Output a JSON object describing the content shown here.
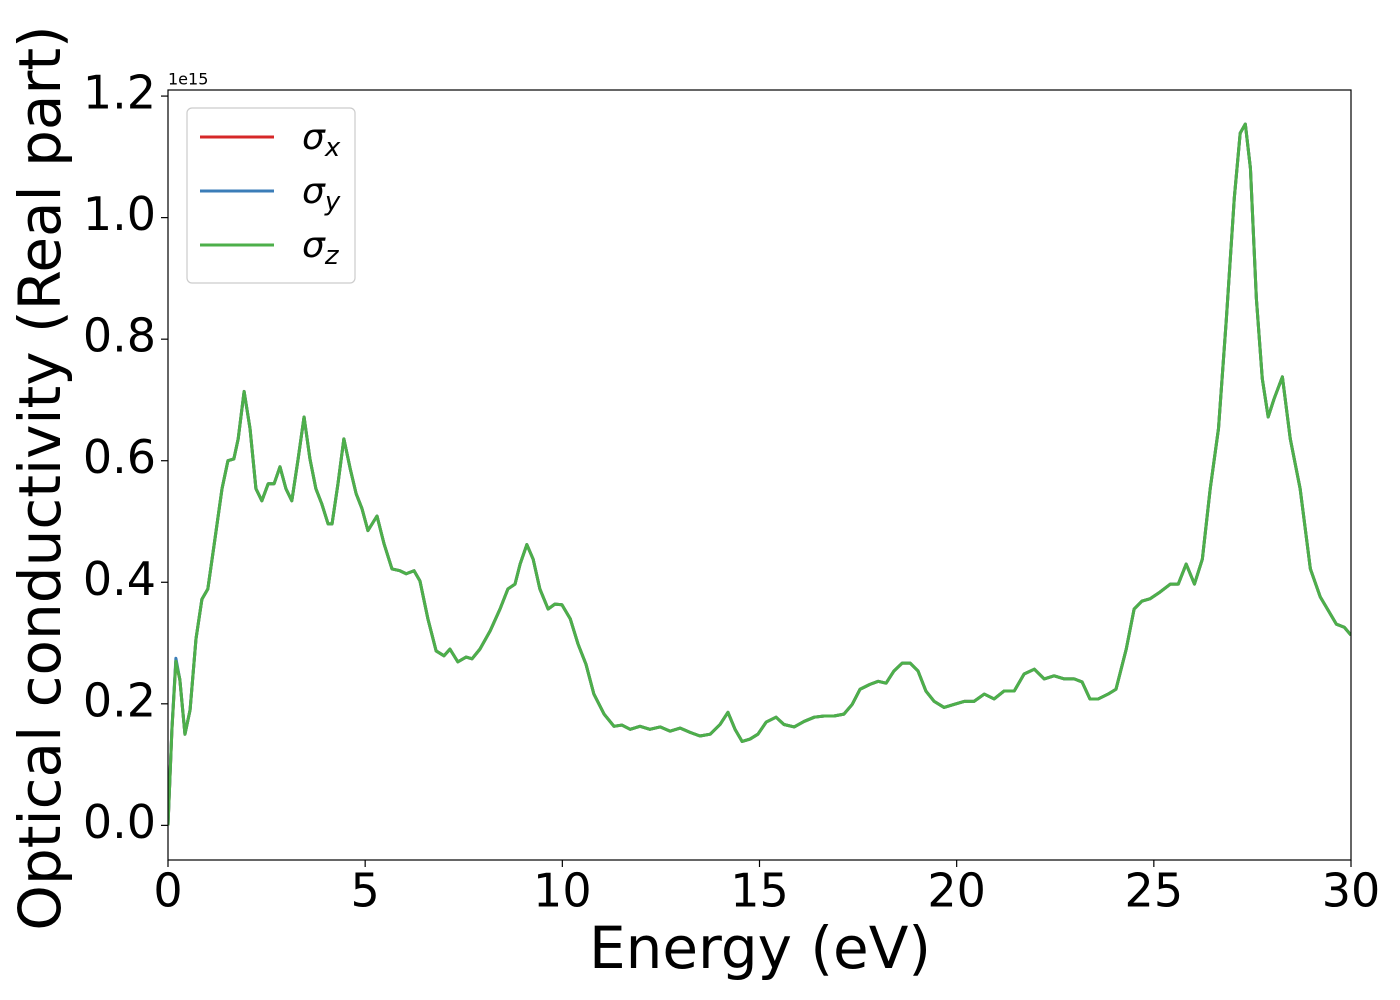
{
  "chart_data": {
    "type": "line",
    "xlabel": "Energy (eV)",
    "ylabel": "Optical conductivity (Real part)",
    "y_offset_label": "1e15",
    "x": [
      0,
      0.1,
      0.2,
      0.3,
      0.43,
      0.56,
      0.71,
      0.86,
      1.01,
      1.19,
      1.37,
      1.52,
      1.67,
      1.78,
      1.93,
      2.08,
      2.23,
      2.38,
      2.54,
      2.69,
      2.84,
      2.99,
      3.14,
      3.3,
      3.45,
      3.6,
      3.75,
      3.9,
      4.06,
      4.16,
      4.31,
      4.46,
      4.62,
      4.77,
      4.92,
      5.07,
      5.3,
      5.48,
      5.68,
      5.88,
      6.04,
      6.24,
      6.39,
      6.59,
      6.8,
      7.0,
      7.15,
      7.35,
      7.56,
      7.71,
      7.91,
      8.17,
      8.42,
      8.62,
      8.8,
      8.93,
      9.1,
      9.26,
      9.43,
      9.64,
      9.81,
      9.99,
      10.2,
      10.4,
      10.6,
      10.8,
      11.06,
      11.31,
      11.51,
      11.72,
      11.97,
      12.22,
      12.48,
      12.73,
      12.99,
      13.24,
      13.49,
      13.75,
      14.0,
      14.2,
      14.38,
      14.56,
      14.76,
      14.96,
      15.17,
      15.42,
      15.62,
      15.88,
      16.13,
      16.39,
      16.64,
      16.89,
      17.14,
      17.35,
      17.55,
      17.8,
      18.01,
      18.21,
      18.41,
      18.62,
      18.82,
      19.02,
      19.22,
      19.43,
      19.68,
      19.93,
      20.19,
      20.44,
      20.7,
      20.95,
      21.2,
      21.46,
      21.71,
      21.97,
      22.22,
      22.47,
      22.73,
      22.98,
      23.18,
      23.38,
      23.59,
      23.84,
      24.04,
      24.3,
      24.5,
      24.7,
      24.91,
      25.16,
      25.42,
      25.62,
      25.82,
      26.03,
      26.23,
      26.43,
      26.64,
      26.84,
      27.04,
      27.19,
      27.32,
      27.45,
      27.6,
      27.75,
      27.9,
      28.05,
      28.26,
      28.46,
      28.71,
      28.97,
      29.22,
      29.43,
      29.63,
      29.83,
      30
    ],
    "series": [
      {
        "name": "σx",
        "color": "#d62728",
        "values": [
          0,
          0.158,
          0.27,
          0.24,
          0.15,
          0.19,
          0.307,
          0.372,
          0.389,
          0.471,
          0.554,
          0.6,
          0.603,
          0.636,
          0.714,
          0.653,
          0.554,
          0.534,
          0.562,
          0.562,
          0.59,
          0.554,
          0.534,
          0.603,
          0.672,
          0.603,
          0.554,
          0.529,
          0.496,
          0.496,
          0.562,
          0.636,
          0.587,
          0.546,
          0.521,
          0.485,
          0.509,
          0.463,
          0.422,
          0.419,
          0.414,
          0.419,
          0.402,
          0.34,
          0.287,
          0.279,
          0.29,
          0.269,
          0.277,
          0.274,
          0.29,
          0.32,
          0.356,
          0.389,
          0.397,
          0.43,
          0.462,
          0.438,
          0.389,
          0.356,
          0.364,
          0.363,
          0.34,
          0.298,
          0.265,
          0.216,
          0.183,
          0.163,
          0.165,
          0.158,
          0.163,
          0.158,
          0.162,
          0.155,
          0.16,
          0.153,
          0.147,
          0.15,
          0.166,
          0.186,
          0.158,
          0.138,
          0.142,
          0.15,
          0.17,
          0.178,
          0.166,
          0.162,
          0.171,
          0.178,
          0.18,
          0.18,
          0.183,
          0.199,
          0.224,
          0.232,
          0.237,
          0.234,
          0.254,
          0.267,
          0.267,
          0.254,
          0.221,
          0.204,
          0.194,
          0.199,
          0.204,
          0.204,
          0.216,
          0.208,
          0.221,
          0.221,
          0.249,
          0.257,
          0.241,
          0.246,
          0.241,
          0.241,
          0.236,
          0.208,
          0.208,
          0.216,
          0.224,
          0.29,
          0.356,
          0.369,
          0.373,
          0.384,
          0.397,
          0.397,
          0.43,
          0.397,
          0.438,
          0.554,
          0.653,
          0.834,
          1.032,
          1.139,
          1.154,
          1.081,
          0.867,
          0.735,
          0.672,
          0.702,
          0.738,
          0.636,
          0.554,
          0.422,
          0.376,
          0.353,
          0.331,
          0.326,
          0.313
        ]
      },
      {
        "name": "σy",
        "color": "#3b7db8",
        "values": [
          0,
          0.16,
          0.275,
          0.24,
          0.15,
          0.19,
          0.307,
          0.372,
          0.389,
          0.471,
          0.554,
          0.6,
          0.603,
          0.636,
          0.714,
          0.653,
          0.554,
          0.534,
          0.562,
          0.562,
          0.59,
          0.554,
          0.534,
          0.603,
          0.672,
          0.603,
          0.554,
          0.529,
          0.496,
          0.496,
          0.562,
          0.636,
          0.587,
          0.546,
          0.521,
          0.485,
          0.509,
          0.463,
          0.422,
          0.419,
          0.414,
          0.419,
          0.402,
          0.34,
          0.287,
          0.279,
          0.29,
          0.269,
          0.277,
          0.274,
          0.29,
          0.32,
          0.356,
          0.389,
          0.397,
          0.43,
          0.462,
          0.438,
          0.389,
          0.356,
          0.364,
          0.363,
          0.34,
          0.298,
          0.265,
          0.216,
          0.183,
          0.163,
          0.165,
          0.158,
          0.163,
          0.158,
          0.162,
          0.155,
          0.16,
          0.153,
          0.147,
          0.15,
          0.166,
          0.186,
          0.158,
          0.138,
          0.142,
          0.15,
          0.17,
          0.178,
          0.166,
          0.162,
          0.171,
          0.178,
          0.18,
          0.18,
          0.183,
          0.199,
          0.224,
          0.232,
          0.237,
          0.234,
          0.254,
          0.267,
          0.267,
          0.254,
          0.221,
          0.204,
          0.194,
          0.199,
          0.204,
          0.204,
          0.216,
          0.208,
          0.221,
          0.221,
          0.249,
          0.257,
          0.241,
          0.246,
          0.241,
          0.241,
          0.236,
          0.208,
          0.208,
          0.216,
          0.224,
          0.29,
          0.356,
          0.369,
          0.373,
          0.384,
          0.397,
          0.397,
          0.43,
          0.397,
          0.438,
          0.554,
          0.653,
          0.834,
          1.032,
          1.139,
          1.154,
          1.081,
          0.867,
          0.735,
          0.672,
          0.702,
          0.738,
          0.636,
          0.554,
          0.422,
          0.376,
          0.353,
          0.331,
          0.326,
          0.313
        ]
      },
      {
        "name": "σz",
        "color": "#4daf4a",
        "values": [
          0,
          0.158,
          0.27,
          0.24,
          0.15,
          0.19,
          0.307,
          0.372,
          0.389,
          0.471,
          0.554,
          0.6,
          0.603,
          0.636,
          0.714,
          0.653,
          0.554,
          0.534,
          0.562,
          0.562,
          0.59,
          0.554,
          0.534,
          0.603,
          0.672,
          0.603,
          0.554,
          0.529,
          0.496,
          0.496,
          0.562,
          0.636,
          0.587,
          0.546,
          0.521,
          0.485,
          0.509,
          0.463,
          0.422,
          0.419,
          0.414,
          0.419,
          0.402,
          0.34,
          0.287,
          0.279,
          0.29,
          0.269,
          0.277,
          0.274,
          0.29,
          0.32,
          0.356,
          0.389,
          0.397,
          0.43,
          0.462,
          0.438,
          0.389,
          0.356,
          0.364,
          0.363,
          0.34,
          0.298,
          0.265,
          0.216,
          0.183,
          0.163,
          0.165,
          0.158,
          0.163,
          0.158,
          0.162,
          0.155,
          0.16,
          0.153,
          0.147,
          0.15,
          0.166,
          0.186,
          0.158,
          0.138,
          0.142,
          0.15,
          0.17,
          0.178,
          0.166,
          0.162,
          0.171,
          0.178,
          0.18,
          0.18,
          0.183,
          0.199,
          0.224,
          0.232,
          0.237,
          0.234,
          0.254,
          0.267,
          0.267,
          0.254,
          0.221,
          0.204,
          0.194,
          0.199,
          0.204,
          0.204,
          0.216,
          0.208,
          0.221,
          0.221,
          0.249,
          0.257,
          0.241,
          0.246,
          0.241,
          0.241,
          0.236,
          0.208,
          0.208,
          0.216,
          0.224,
          0.29,
          0.356,
          0.369,
          0.373,
          0.384,
          0.397,
          0.397,
          0.43,
          0.397,
          0.438,
          0.554,
          0.653,
          0.834,
          1.032,
          1.139,
          1.154,
          1.081,
          0.867,
          0.735,
          0.672,
          0.702,
          0.738,
          0.636,
          0.554,
          0.422,
          0.376,
          0.353,
          0.331,
          0.326,
          0.313
        ]
      }
    ],
    "xlim": [
      0,
      30
    ],
    "xticks": [
      0,
      5,
      10,
      15,
      20,
      25,
      30
    ],
    "ylim": [
      -0.057,
      1.21
    ],
    "yticks": [
      {
        "value": 0,
        "label": "0.0"
      },
      0.2,
      0.4,
      0.6,
      0.8,
      {
        "value": 1,
        "label": "1.0"
      },
      1.2
    ],
    "grid": false,
    "legend": "upper left"
  }
}
